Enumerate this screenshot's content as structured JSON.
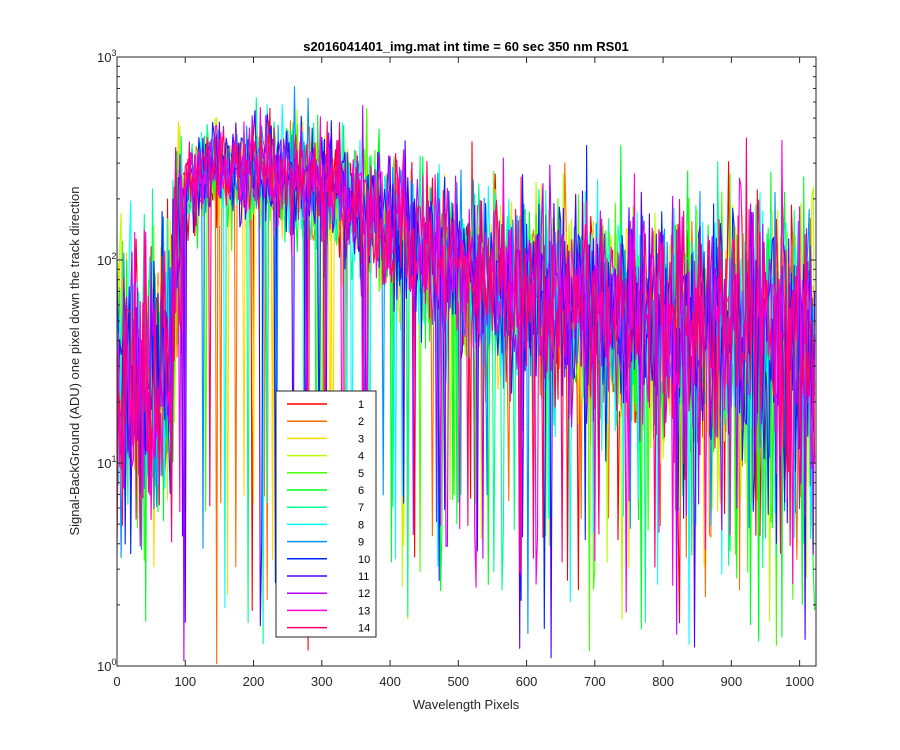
{
  "chart_data": {
    "type": "line",
    "title": "s2016041401_img.mat int time = 60 sec  350 nm RS01",
    "xlabel": "Wavelength Pixels",
    "ylabel": "Signal-BackGround (ADU) one pixel down the track direction",
    "xlim": [
      0,
      1024
    ],
    "ylim": [
      1,
      1000
    ],
    "yscale": "log",
    "xticks": [
      0,
      100,
      200,
      300,
      400,
      500,
      600,
      700,
      800,
      900,
      1000
    ],
    "yticks": [
      {
        "value": 1,
        "base": "10",
        "exp": "0"
      },
      {
        "value": 10,
        "base": "10",
        "exp": "1"
      },
      {
        "value": 100,
        "base": "10",
        "exp": "2"
      },
      {
        "value": 1000,
        "base": "10",
        "exp": "3"
      }
    ],
    "grid": false,
    "legend_position": "lower-left",
    "envelope_note_free": true,
    "envelope_x": [
      0,
      75,
      85,
      95,
      120,
      200,
      250,
      300,
      350,
      400,
      450,
      500,
      600,
      700,
      800,
      900,
      1024
    ],
    "envelope_y": [
      25,
      25,
      60,
      200,
      270,
      280,
      260,
      230,
      180,
      140,
      110,
      85,
      65,
      55,
      50,
      45,
      40
    ],
    "series": [
      {
        "name": "1",
        "color": "#ff0000"
      },
      {
        "name": "2",
        "color": "#ff6d00"
      },
      {
        "name": "3",
        "color": "#ffdb00"
      },
      {
        "name": "4",
        "color": "#b6ff00"
      },
      {
        "name": "5",
        "color": "#49ff00"
      },
      {
        "name": "6",
        "color": "#00ff24"
      },
      {
        "name": "7",
        "color": "#00ff92"
      },
      {
        "name": "8",
        "color": "#00ffff"
      },
      {
        "name": "9",
        "color": "#0092ff"
      },
      {
        "name": "10",
        "color": "#0024ff"
      },
      {
        "name": "11",
        "color": "#4900ff"
      },
      {
        "name": "12",
        "color": "#b600ff"
      },
      {
        "name": "13",
        "color": "#ff00db"
      },
      {
        "name": "14",
        "color": "#ff006d"
      }
    ]
  }
}
